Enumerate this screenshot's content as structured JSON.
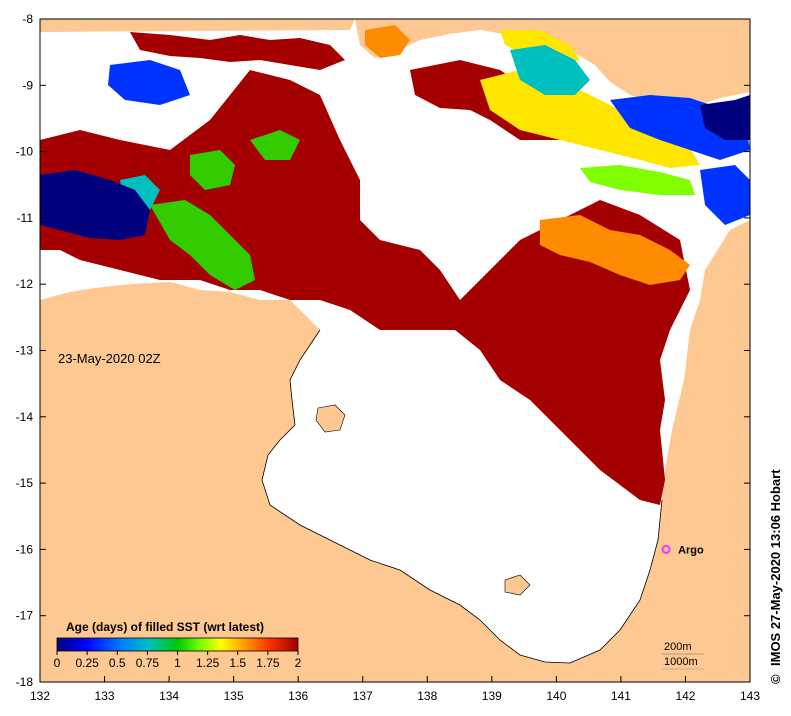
{
  "map": {
    "timestamp": "23-May-2020 02Z",
    "x_ticks": [
      "132",
      "133",
      "134",
      "135",
      "136",
      "137",
      "138",
      "139",
      "140",
      "141",
      "142",
      "143"
    ],
    "y_ticks": [
      "-8",
      "-9",
      "-10",
      "-11",
      "-12",
      "-13",
      "-14",
      "-15",
      "-16",
      "-17",
      "-18"
    ],
    "x_range": [
      132,
      143
    ],
    "y_range": [
      -18,
      -8
    ]
  },
  "legend": {
    "title": "Age (days) of filled SST (wrt latest)",
    "ticks": [
      "0",
      "0.25",
      "0.5",
      "0.75",
      "1",
      "1.25",
      "1.5",
      "1.75",
      "2"
    ],
    "colors": [
      "#00007f",
      "#0000ff",
      "#007fff",
      "#00bfbf",
      "#00c800",
      "#7fff00",
      "#ffff00",
      "#ff9900",
      "#ff3300",
      "#a00000"
    ]
  },
  "argo": {
    "label": "Argo",
    "lon": 141.7,
    "lat": -16.0,
    "color": "#ff33ff"
  },
  "contours": {
    "label_200": "200m",
    "label_1000": "1000m"
  },
  "credit": "IMOS 27-May-2020 13:06 Hobart",
  "credit_symbol": "©",
  "colors": {
    "land": "#fdc891",
    "no_data": "#ffffff",
    "dark_red": "#a50000",
    "orange": "#ff8c00",
    "yellow": "#ffe600",
    "green": "#33cc00",
    "cyan": "#00bfbf",
    "blue": "#0033ff",
    "navy": "#00007f"
  }
}
